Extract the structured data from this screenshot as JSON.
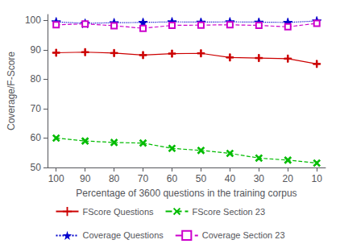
{
  "chart_data": {
    "type": "line",
    "x": [
      100,
      90,
      80,
      70,
      60,
      50,
      40,
      30,
      20,
      10
    ],
    "series": [
      {
        "name": "FScore Questions",
        "color": "#cc0000",
        "marker": "plus",
        "line_style": "solid",
        "values": [
          89.0,
          89.2,
          88.9,
          88.2,
          88.7,
          88.8,
          87.4,
          87.2,
          87.0,
          85.2
        ]
      },
      {
        "name": "FScore Section 23",
        "color": "#00bb00",
        "marker": "x",
        "line_style": "dashed",
        "values": [
          60.0,
          59.0,
          58.5,
          58.3,
          56.5,
          55.8,
          54.8,
          53.2,
          52.5,
          51.5
        ]
      },
      {
        "name": "Coverage Questions",
        "color": "#0000cc",
        "marker": "star",
        "line_style": "dotted",
        "values": [
          99.5,
          99.0,
          99.2,
          99.3,
          99.5,
          99.4,
          99.5,
          99.4,
          99.3,
          99.8
        ]
      },
      {
        "name": "Coverage Section 23",
        "color": "#cc00cc",
        "marker": "open_square",
        "line_style": "dashed",
        "values": [
          98.5,
          98.8,
          98.2,
          97.3,
          98.3,
          98.4,
          98.5,
          98.3,
          97.8,
          99.0
        ]
      }
    ],
    "xlabel": "Percentage of 3600 questions in the training corpus",
    "ylabel": "Coverage/F-Score",
    "xlim": [
      103,
      7
    ],
    "xticks": [
      100,
      90,
      80,
      70,
      60,
      50,
      40,
      30,
      20,
      10
    ],
    "ylim": [
      50,
      102
    ],
    "yticks": [
      50,
      60,
      70,
      80,
      90,
      100
    ],
    "grid": false,
    "legend": "bottom"
  }
}
